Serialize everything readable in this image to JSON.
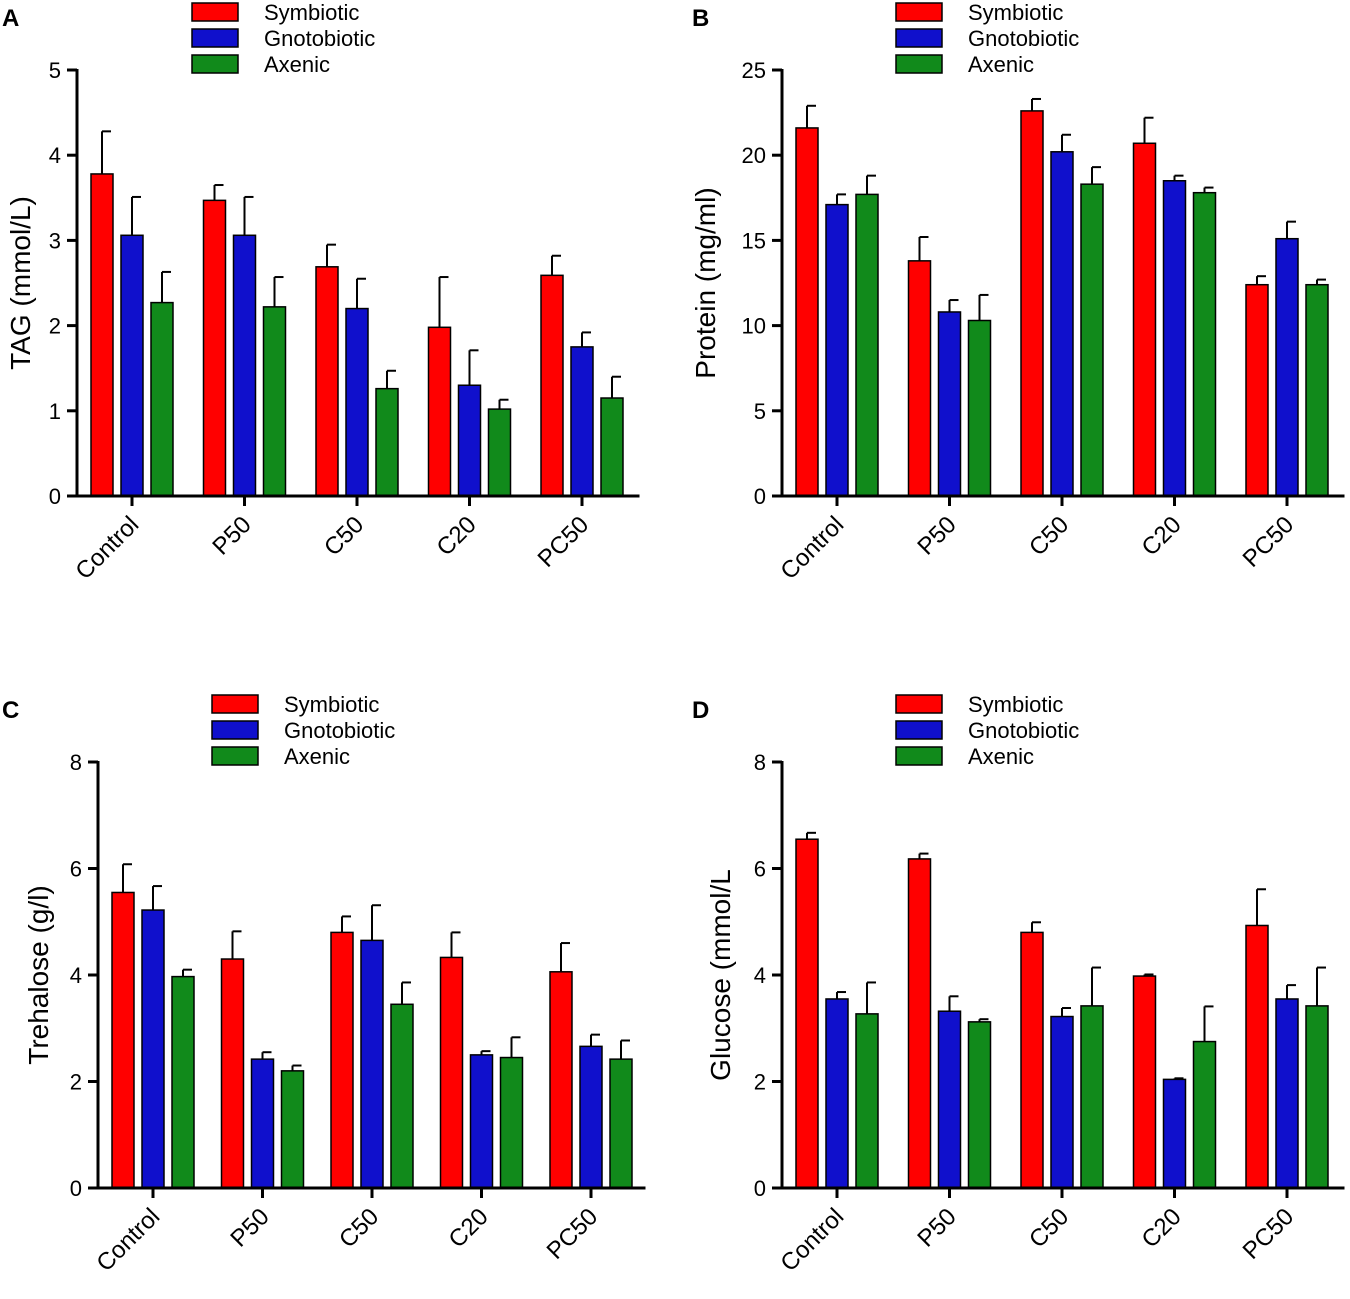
{
  "series_colors": {
    "Symbiotic": "#ff0000",
    "Gnotobiotic": "#1010cc",
    "Axenic": "#118a1b"
  },
  "chart_data": [
    {
      "panel": "A",
      "type": "bar",
      "ylabel": "TAG (mmol/L)",
      "ylim": [
        0,
        5
      ],
      "yticks": [
        0,
        1,
        2,
        3,
        4,
        5
      ],
      "categories": [
        "Control",
        "P50",
        "C50",
        "C20",
        "PC50"
      ],
      "legend": [
        "Symbiotic",
        "Gnotobiotic",
        "Axenic"
      ],
      "series": [
        {
          "name": "Symbiotic",
          "values": [
            3.78,
            3.47,
            2.69,
            1.98,
            2.59
          ],
          "errors": [
            0.5,
            0.18,
            0.26,
            0.59,
            0.23
          ]
        },
        {
          "name": "Gnotobiotic",
          "values": [
            3.06,
            3.06,
            2.2,
            1.3,
            1.75
          ],
          "errors": [
            0.45,
            0.45,
            0.35,
            0.41,
            0.17
          ]
        },
        {
          "name": "Axenic",
          "values": [
            2.27,
            2.22,
            1.26,
            1.02,
            1.15
          ],
          "errors": [
            0.36,
            0.35,
            0.21,
            0.11,
            0.25
          ]
        }
      ]
    },
    {
      "panel": "B",
      "type": "bar",
      "ylabel": "Protein (mg/ml)",
      "ylim": [
        0,
        25
      ],
      "yticks": [
        0,
        5,
        10,
        15,
        20,
        25
      ],
      "categories": [
        "Control",
        "P50",
        "C50",
        "C20",
        "PC50"
      ],
      "legend": [
        "Symbiotic",
        "Gnotobiotic",
        "Axenic"
      ],
      "series": [
        {
          "name": "Symbiotic",
          "values": [
            21.6,
            13.8,
            22.6,
            20.7,
            12.4
          ],
          "errors": [
            1.3,
            1.4,
            0.7,
            1.5,
            0.5
          ]
        },
        {
          "name": "Gnotobiotic",
          "values": [
            17.1,
            10.8,
            20.2,
            18.5,
            15.1
          ],
          "errors": [
            0.6,
            0.7,
            1.0,
            0.3,
            1.0
          ]
        },
        {
          "name": "Axenic",
          "values": [
            17.7,
            10.3,
            18.3,
            17.8,
            12.4
          ],
          "errors": [
            1.1,
            1.5,
            1.0,
            0.3,
            0.3
          ]
        }
      ]
    },
    {
      "panel": "C",
      "type": "bar",
      "ylabel": "Trehalose (g/l)",
      "ylim": [
        0,
        8
      ],
      "yticks": [
        0,
        2,
        4,
        6,
        8
      ],
      "categories": [
        "Control",
        "P50",
        "C50",
        "C20",
        "PC50"
      ],
      "legend": [
        "Symbiotic",
        "Gnotobiotic",
        "Axenic"
      ],
      "series": [
        {
          "name": "Symbiotic",
          "values": [
            5.55,
            4.3,
            4.8,
            4.33,
            4.06
          ],
          "errors": [
            0.53,
            0.52,
            0.3,
            0.47,
            0.54
          ]
        },
        {
          "name": "Gnotobiotic",
          "values": [
            5.22,
            2.42,
            4.65,
            2.5,
            2.66
          ],
          "errors": [
            0.45,
            0.13,
            0.66,
            0.07,
            0.22
          ]
        },
        {
          "name": "Axenic",
          "values": [
            3.97,
            2.2,
            3.45,
            2.45,
            2.42
          ],
          "errors": [
            0.13,
            0.1,
            0.41,
            0.38,
            0.35
          ]
        }
      ]
    },
    {
      "panel": "D",
      "type": "bar",
      "ylabel": "Glucose (mmol/L",
      "ylim": [
        0,
        8
      ],
      "yticks": [
        0,
        2,
        4,
        6,
        8
      ],
      "categories": [
        "Control",
        "P50",
        "C50",
        "C20",
        "PC50"
      ],
      "legend": [
        "Symbiotic",
        "Gnotobiotic",
        "Axenic"
      ],
      "series": [
        {
          "name": "Symbiotic",
          "values": [
            6.55,
            6.18,
            4.8,
            3.98,
            4.93
          ],
          "errors": [
            0.12,
            0.1,
            0.19,
            0.03,
            0.68
          ]
        },
        {
          "name": "Gnotobiotic",
          "values": [
            3.55,
            3.32,
            3.22,
            2.04,
            3.55
          ],
          "errors": [
            0.13,
            0.28,
            0.16,
            0.02,
            0.26
          ]
        },
        {
          "name": "Axenic",
          "values": [
            3.27,
            3.12,
            3.42,
            2.75,
            3.42
          ],
          "errors": [
            0.59,
            0.05,
            0.72,
            0.66,
            0.72
          ]
        }
      ]
    }
  ]
}
